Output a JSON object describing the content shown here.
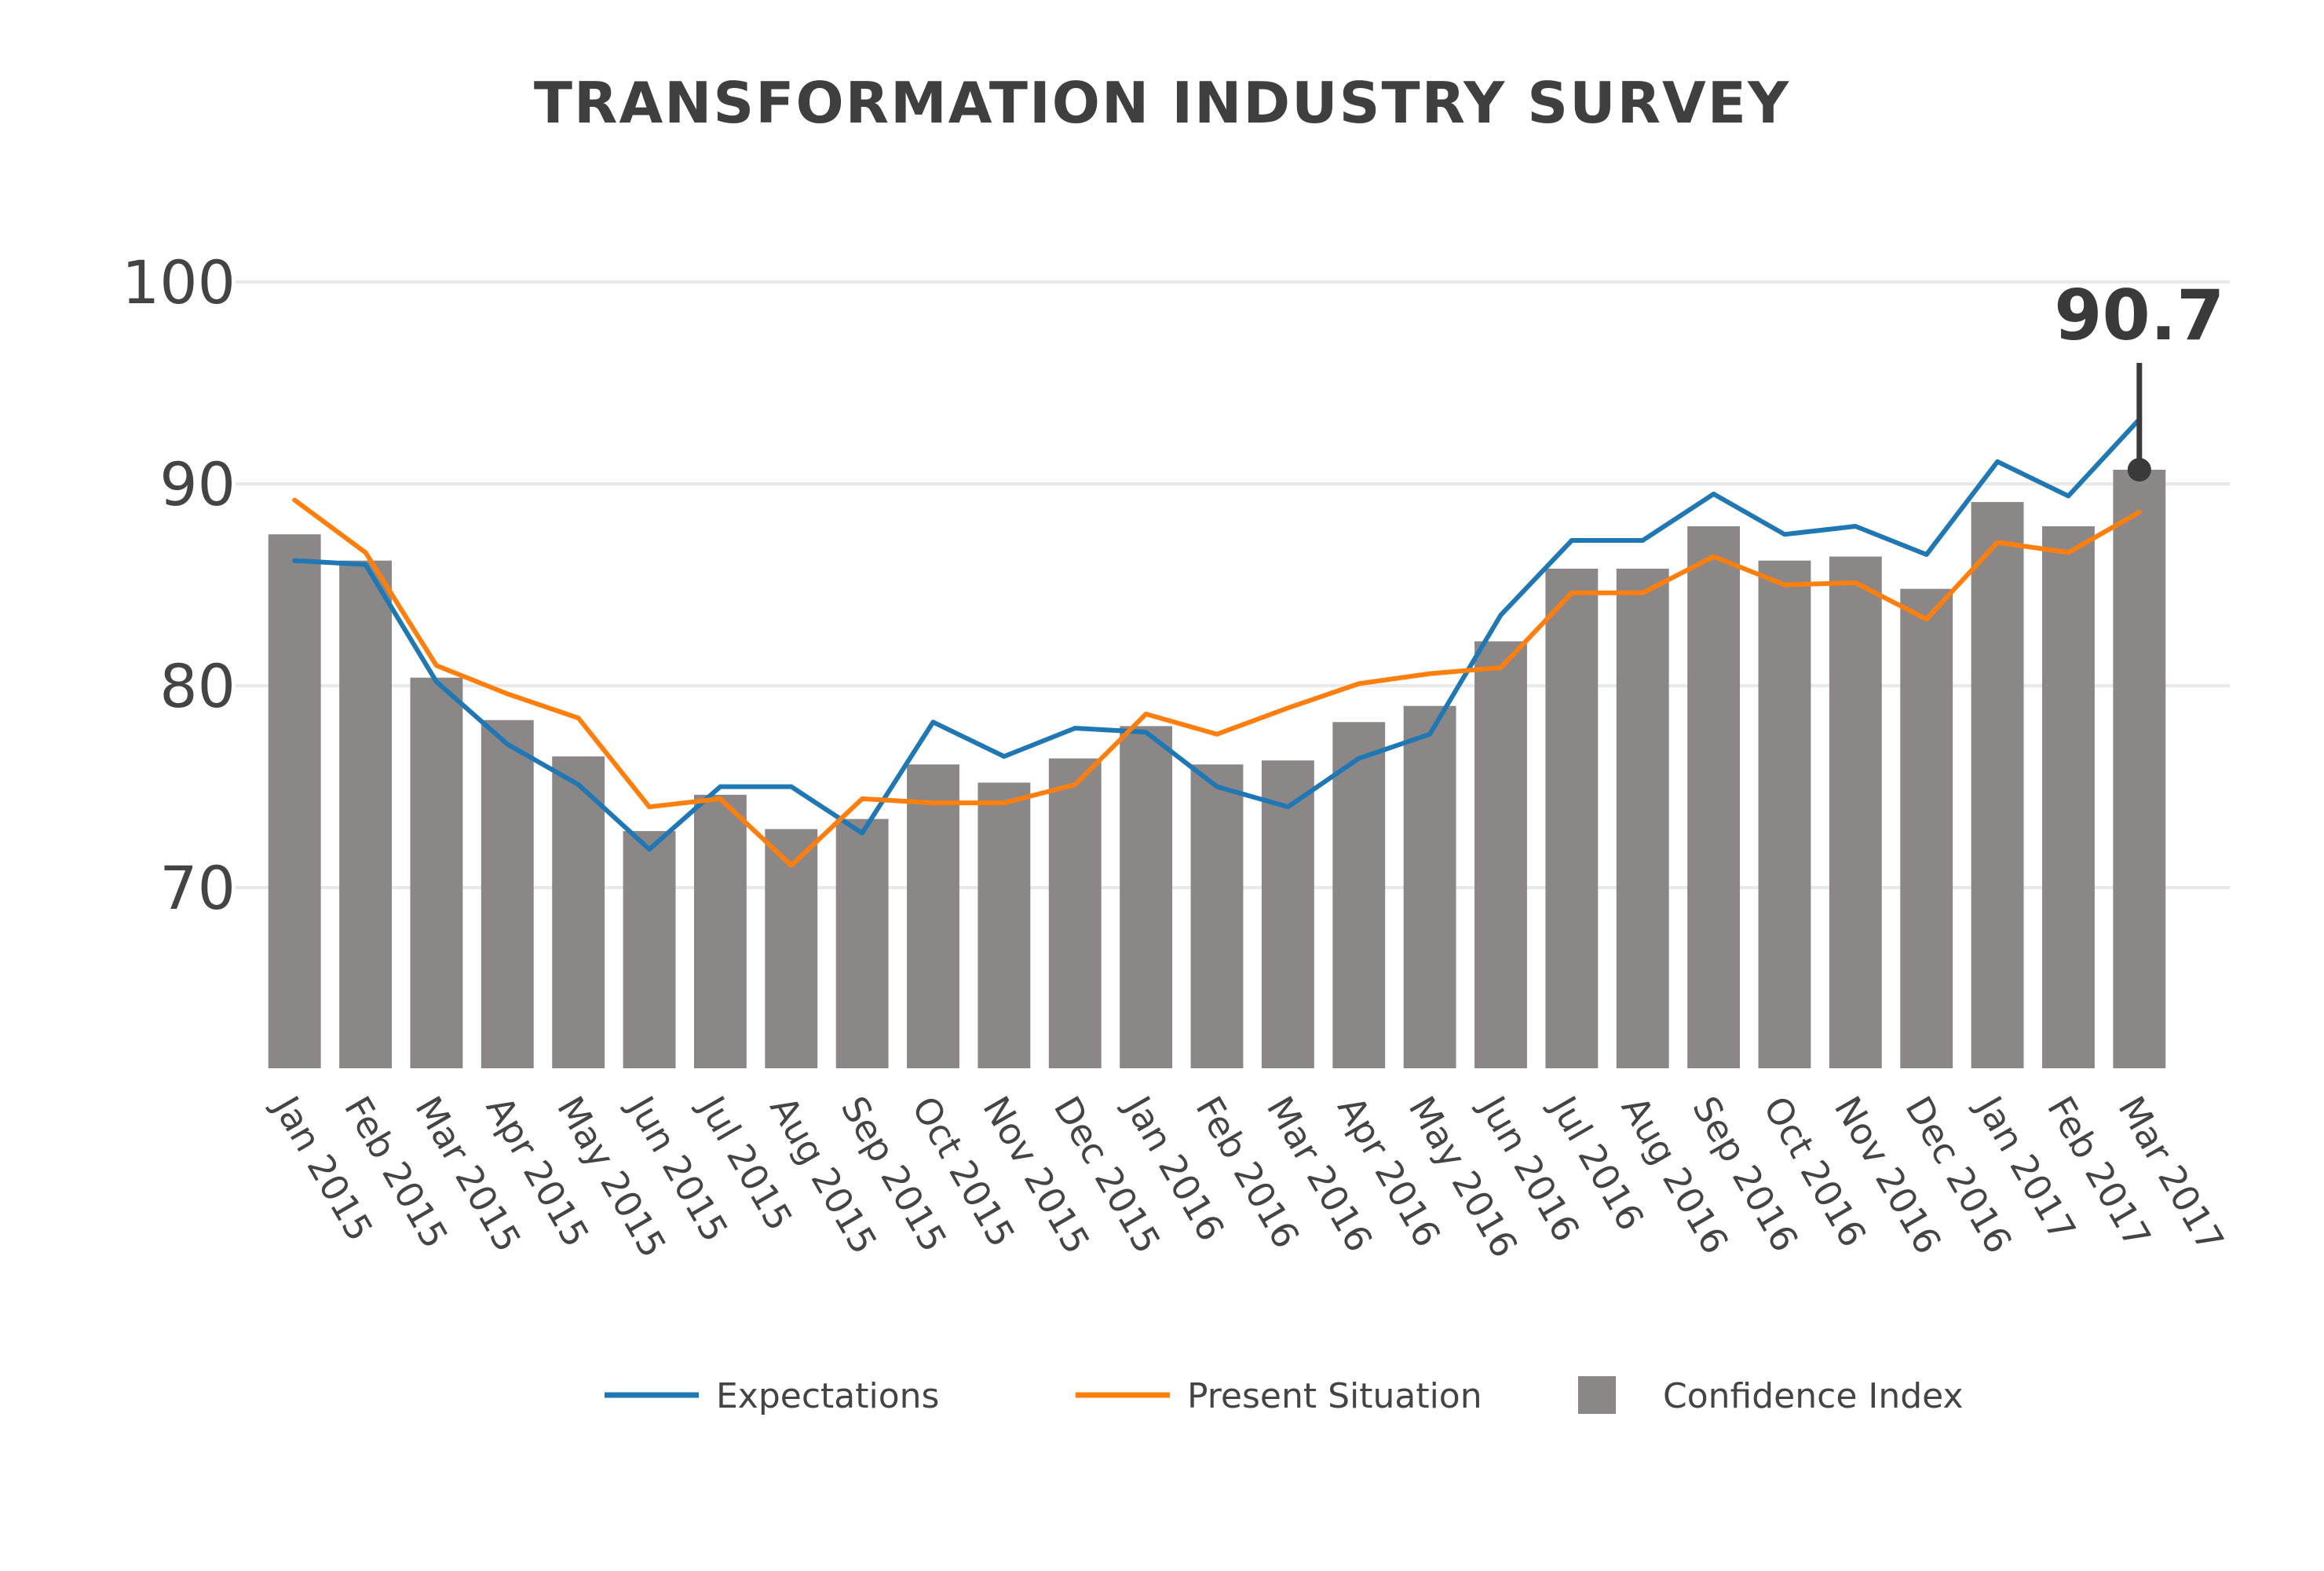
{
  "chart_data": {
    "type": "bar",
    "title": "TRANSFORMATION INDUSTRY SURVEY",
    "xlabel": "",
    "ylabel": "",
    "ylim": [
      61,
      104
    ],
    "yticks": [
      70,
      80,
      90,
      100
    ],
    "grid": true,
    "categories": [
      "Jan 2015",
      "Feb 2015",
      "Mar 2015",
      "Apr 2015",
      "May 2015",
      "Jun 2015",
      "Jul 2015",
      "Aug 2015",
      "Sep 2015",
      "Oct 2015",
      "Nov 2015",
      "Dec 2015",
      "Jan 2016",
      "Feb 2016",
      "Mar 2016",
      "Apr 2016",
      "May 2016",
      "Jun 2016",
      "Jul 2016",
      "Aug 2016",
      "Sep 2016",
      "Oct 2016",
      "Nov 2016",
      "Dec 2016",
      "Jan 2017",
      "Feb 2017",
      "Mar 2017"
    ],
    "series": [
      {
        "name": "Confidence Index",
        "kind": "bar",
        "color": "#8c8787",
        "values": [
          87.5,
          86.2,
          80.4,
          78.3,
          76.5,
          72.8,
          74.6,
          72.9,
          73.4,
          76.1,
          75.2,
          76.4,
          78.0,
          76.1,
          76.3,
          78.2,
          79.0,
          82.2,
          85.8,
          85.8,
          87.9,
          86.2,
          86.4,
          84.8,
          89.1,
          87.9,
          90.7
        ]
      },
      {
        "name": "Expectations",
        "kind": "line",
        "color": "#1f77b4",
        "values": [
          86.2,
          86.0,
          80.2,
          77.1,
          75.1,
          71.9,
          75.0,
          75.0,
          72.7,
          78.2,
          76.5,
          77.9,
          77.7,
          75.0,
          74.0,
          76.4,
          77.6,
          83.5,
          87.2,
          87.2,
          89.5,
          87.5,
          87.9,
          86.5,
          91.1,
          89.4,
          93.2
        ]
      },
      {
        "name": "Present Situation",
        "kind": "line",
        "color": "#ff7f0e",
        "values": [
          89.2,
          86.6,
          81.0,
          79.6,
          78.4,
          74.0,
          74.4,
          71.1,
          74.4,
          74.2,
          74.2,
          75.1,
          78.6,
          77.6,
          78.9,
          80.1,
          80.6,
          80.9,
          84.6,
          84.6,
          86.4,
          85.0,
          85.1,
          83.3,
          87.1,
          86.6,
          88.6
        ]
      }
    ],
    "legend_position": "bottom-center",
    "annotation": {
      "text": "90.7",
      "category": "Mar 2017",
      "value": 90.7
    }
  }
}
